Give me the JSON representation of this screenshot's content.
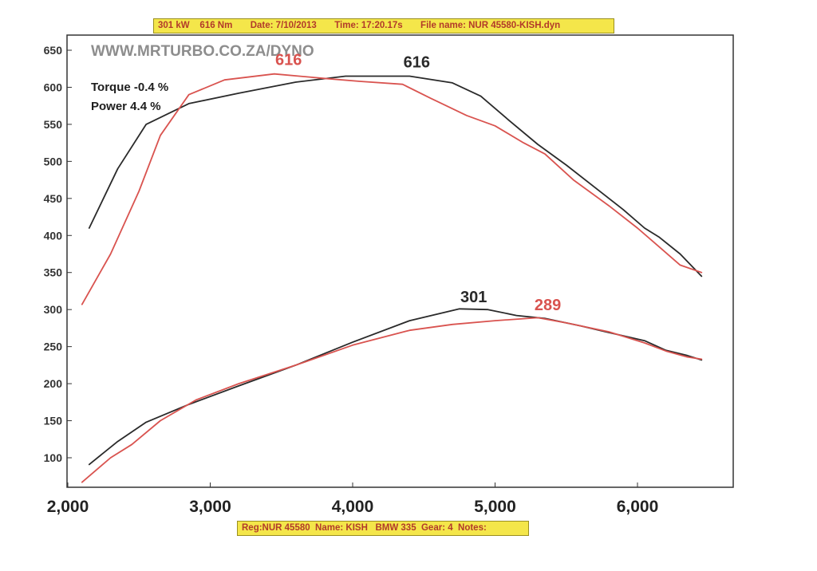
{
  "header": {
    "power": "301 kW",
    "torque": "616 Nm",
    "date": "Date: 7/10/2013",
    "time": "Time: 17:20.17s",
    "file": "File name: NUR 45580-KISH.dyn"
  },
  "footer": {
    "reg": "Reg:NUR 45580",
    "name": "Name: KISH",
    "car": "BMW 335",
    "gear": "Gear: 4",
    "notes": "Notes:"
  },
  "watermark": "WWW.MRTURBO.CO.ZA/DYNO",
  "comparison": {
    "torque_diff": "Torque -0.4 %",
    "power_diff": "Power 4.4 %"
  },
  "colors": {
    "black_run": "#2a2a2a",
    "red_run": "#d9534f",
    "banner": "#f4e64a"
  },
  "chart_data": {
    "type": "line",
    "title": "",
    "xlabel": "",
    "ylabel": "",
    "xlim": [
      2000,
      6650
    ],
    "ylim": [
      50,
      660
    ],
    "x_ticks": [
      2000,
      3000,
      4000,
      5000,
      6000
    ],
    "x_tick_labels": [
      "2,000",
      "3,000",
      "4,000",
      "5,000",
      "6,000"
    ],
    "y_ticks": [
      100,
      150,
      200,
      250,
      300,
      350,
      400,
      450,
      500,
      550,
      600,
      650
    ],
    "y_tick_labels": [
      "100",
      "150",
      "200",
      "250",
      "300",
      "350",
      "400",
      "450",
      "500",
      "550",
      "600",
      "650"
    ],
    "grid": false,
    "series": [
      {
        "name": "Torque (black run)",
        "color": "#2a2a2a",
        "x": [
          2150,
          2350,
          2550,
          2850,
          3200,
          3600,
          3950,
          4400,
          4700,
          4900,
          5100,
          5300,
          5500,
          5700,
          5900,
          6050,
          6150,
          6300,
          6450
        ],
        "y": [
          410,
          490,
          550,
          578,
          592,
          607,
          615,
          615,
          606,
          588,
          555,
          523,
          495,
          465,
          435,
          410,
          398,
          375,
          345
        ]
      },
      {
        "name": "Torque (red run)",
        "color": "#d9534f",
        "x": [
          2100,
          2300,
          2500,
          2650,
          2850,
          3100,
          3450,
          3800,
          4050,
          4350,
          4550,
          4800,
          5000,
          5200,
          5350,
          5550,
          5800,
          6000,
          6150,
          6300,
          6450
        ],
        "y": [
          307,
          375,
          460,
          535,
          590,
          610,
          618,
          612,
          608,
          604,
          585,
          562,
          548,
          525,
          510,
          475,
          440,
          410,
          385,
          360,
          350
        ]
      },
      {
        "name": "Power (black run)",
        "color": "#2a2a2a",
        "x": [
          2150,
          2350,
          2550,
          2850,
          3200,
          3600,
          4000,
          4400,
          4750,
          4950,
          5150,
          5350,
          5600,
          5800,
          6050,
          6200,
          6350,
          6450
        ],
        "y": [
          91,
          122,
          148,
          172,
          197,
          225,
          256,
          285,
          301,
          300,
          292,
          288,
          278,
          269,
          258,
          245,
          238,
          232
        ]
      },
      {
        "name": "Power (red run)",
        "color": "#d9534f",
        "x": [
          2100,
          2300,
          2450,
          2650,
          2900,
          3200,
          3600,
          4000,
          4400,
          4700,
          5000,
          5300,
          5500,
          5800,
          6050,
          6200,
          6350,
          6450
        ],
        "y": [
          67,
          100,
          118,
          150,
          178,
          200,
          225,
          252,
          272,
          280,
          285,
          289,
          282,
          270,
          255,
          244,
          236,
          233
        ]
      }
    ],
    "annotations": [
      {
        "text": "616",
        "x": 4450,
        "y": 627,
        "color": "#2a2a2a"
      },
      {
        "text": "616",
        "x": 3550,
        "y": 630,
        "color": "#d9534f"
      },
      {
        "text": "301",
        "x": 4850,
        "y": 310,
        "color": "#2a2a2a"
      },
      {
        "text": "289",
        "x": 5370,
        "y": 299,
        "color": "#d9534f"
      }
    ]
  }
}
